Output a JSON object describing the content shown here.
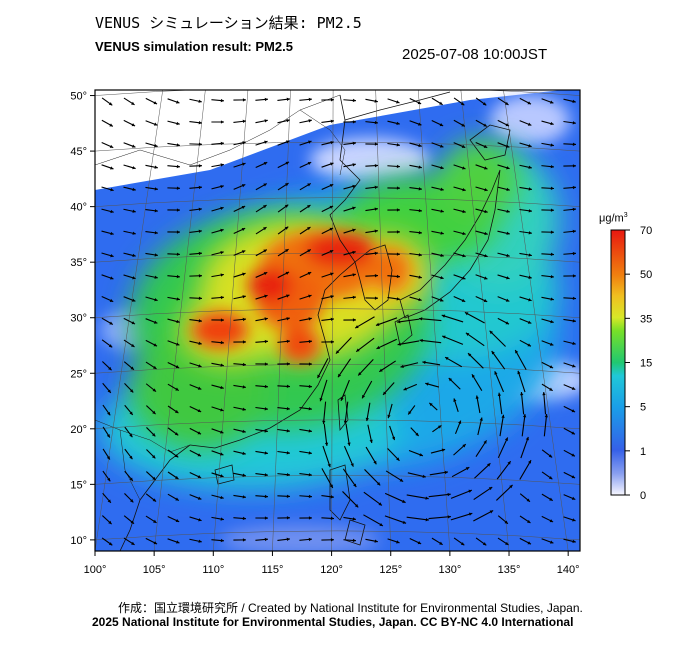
{
  "header": {
    "title_jp": "VENUS シミュレーション結果: PM2.5",
    "title_en": "VENUS simulation result: PM2.5",
    "timestamp": "2025-07-08 10:00JST"
  },
  "footer": {
    "credit_line1": "作成：国立環境研究所 / Created by National Institute for Environmental Studies, Japan.",
    "credit_line2": "2025 National Institute for Environmental Studies, Japan. CC BY-NC 4.0 International"
  },
  "map": {
    "lon_ticks": [
      "100°",
      "105°",
      "110°",
      "115°",
      "120°",
      "125°",
      "130°",
      "135°",
      "140°"
    ],
    "lat_ticks": [
      "50°",
      "45°",
      "40°",
      "35°",
      "30°",
      "25°",
      "20°",
      "15°",
      "10°"
    ],
    "lon_range": [
      100,
      141
    ],
    "lat_range": [
      9,
      50.5
    ]
  },
  "colorbar": {
    "unit_base": "μg/m",
    "unit_exp": "3",
    "labels": [
      "70",
      "50",
      "35",
      "15",
      "5",
      "1",
      "0"
    ],
    "colors": [
      "#f7f7ff",
      "#3560e8",
      "#1a9ee8",
      "#20c8d8",
      "#20c870",
      "#78e028",
      "#f0e020",
      "#f08010",
      "#e81810"
    ]
  },
  "chart_data": {
    "type": "heatmap",
    "variable": "PM2.5",
    "unit": "μg/m3",
    "scale_labels": [
      0,
      1,
      5,
      15,
      35,
      50,
      70
    ],
    "high_regions": [
      {
        "lon": 117,
        "lat": 35.5,
        "value": 65
      },
      {
        "lon": 114,
        "lat": 33,
        "value": 60
      },
      {
        "lon": 109,
        "lat": 28.5,
        "value": 55
      },
      {
        "lon": 116,
        "lat": 27,
        "value": 55
      },
      {
        "lon": 127,
        "lat": 36,
        "value": 40
      }
    ],
    "cyclone_center": {
      "lon": 128,
      "lat": 21
    }
  }
}
